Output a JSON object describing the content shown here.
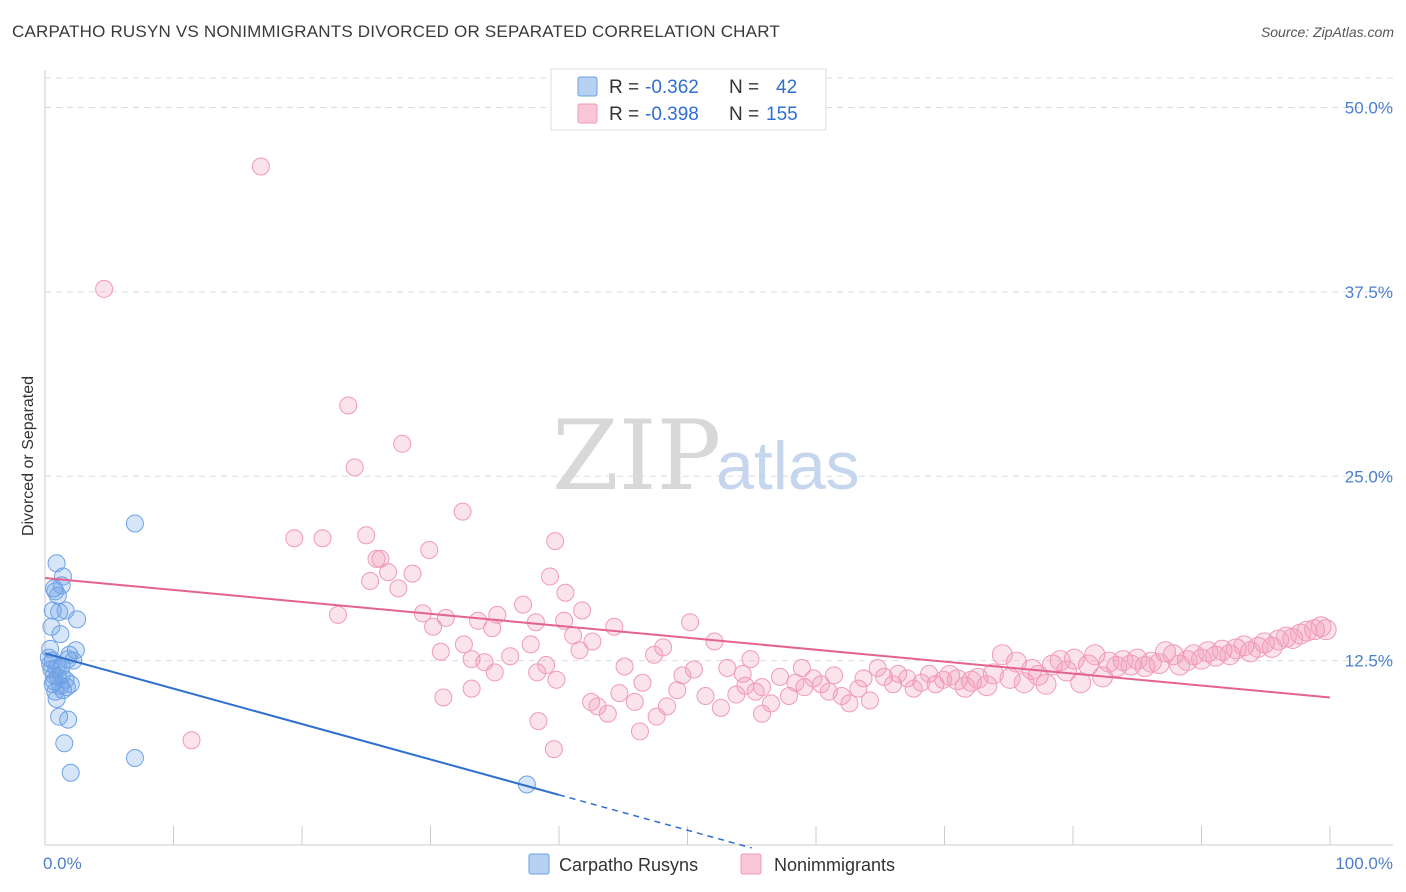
{
  "title": "CARPATHO RUSYN VS NONIMMIGRANTS DIVORCED OR SEPARATED CORRELATION CHART",
  "source": "Source: ZipAtlas.com",
  "watermark": {
    "zip": "ZIP",
    "atlas": "atlas"
  },
  "colors": {
    "blue": "#6ea2e6",
    "blue_line": "#2f6fd0",
    "pink": "#f19ab6",
    "pink_line": "#e4628e",
    "tick_text": "#4a7fcc",
    "grid": "#dddddd"
  },
  "legend": {
    "r_label": "R =",
    "n_label": "N =",
    "rows": [
      {
        "r": "-0.362",
        "n": "42"
      },
      {
        "r": "-0.398",
        "n": "155"
      }
    ]
  },
  "bottom_legend": [
    "Carpatho Rusyns",
    "Nonimmigrants"
  ],
  "chart_data": {
    "type": "scatter",
    "title": "CARPATHO RUSYN VS NONIMMIGRANTS DIVORCED OR SEPARATED CORRELATION CHART",
    "xlabel": "",
    "ylabel": "Divorced or Separated",
    "xlim": [
      0,
      100
    ],
    "ylim": [
      0,
      52
    ],
    "x_tick_labels": [
      "0.0%",
      "100.0%"
    ],
    "y_ticks": [
      12.5,
      25.0,
      37.5,
      50.0
    ],
    "y_tick_labels": [
      "12.5%",
      "25.0%",
      "37.5%",
      "50.0%"
    ],
    "grid": true,
    "legend_position": "top-center",
    "series": [
      {
        "name": "Carpatho Rusyns",
        "r": -0.362,
        "n": 42,
        "trend": {
          "x0": 0,
          "y0": 13.0,
          "x1": 40,
          "y1": 3.4,
          "dashed_to_x": 55
        },
        "points": [
          [
            0.3,
            12.7
          ],
          [
            0.4,
            12.3
          ],
          [
            0.5,
            11.9
          ],
          [
            0.6,
            12.5
          ],
          [
            0.7,
            11.5
          ],
          [
            0.4,
            13.3
          ],
          [
            0.5,
            14.8
          ],
          [
            0.6,
            15.9
          ],
          [
            0.7,
            17.4
          ],
          [
            0.8,
            17.2
          ],
          [
            0.9,
            19.1
          ],
          [
            1.0,
            16.9
          ],
          [
            1.1,
            15.8
          ],
          [
            1.2,
            14.3
          ],
          [
            1.3,
            17.6
          ],
          [
            1.4,
            18.2
          ],
          [
            0.6,
            10.9
          ],
          [
            0.7,
            11.1
          ],
          [
            0.8,
            10.4
          ],
          [
            0.9,
            9.9
          ],
          [
            1.0,
            11.4
          ],
          [
            1.2,
            10.8
          ],
          [
            1.3,
            12.1
          ],
          [
            1.4,
            10.5
          ],
          [
            1.6,
            11.2
          ],
          [
            1.7,
            10.7
          ],
          [
            1.8,
            12.6
          ],
          [
            1.9,
            12.9
          ],
          [
            2.0,
            10.9
          ],
          [
            2.2,
            12.5
          ],
          [
            1.1,
            8.7
          ],
          [
            1.5,
            6.9
          ],
          [
            1.8,
            8.5
          ],
          [
            2.0,
            4.9
          ],
          [
            2.4,
            13.2
          ],
          [
            2.5,
            15.3
          ],
          [
            1.6,
            15.9
          ],
          [
            0.9,
            12.0
          ],
          [
            1.3,
            11.5
          ],
          [
            7.0,
            21.8
          ],
          [
            7.0,
            5.9
          ],
          [
            37.5,
            4.1
          ]
        ]
      },
      {
        "name": "Nonimmigrants",
        "r": -0.398,
        "n": 155,
        "trend": {
          "x0": 0,
          "y0": 18.1,
          "x1": 100,
          "y1": 10.0
        },
        "points": [
          [
            16.8,
            46.0
          ],
          [
            4.6,
            37.7
          ],
          [
            23.6,
            29.8
          ],
          [
            27.8,
            27.2
          ],
          [
            24.1,
            25.6
          ],
          [
            32.5,
            22.6
          ],
          [
            19.4,
            20.8
          ],
          [
            21.6,
            20.8
          ],
          [
            25.0,
            21.0
          ],
          [
            29.9,
            20.0
          ],
          [
            39.7,
            20.6
          ],
          [
            25.8,
            19.4
          ],
          [
            26.1,
            19.4
          ],
          [
            26.7,
            18.5
          ],
          [
            28.6,
            18.4
          ],
          [
            25.3,
            17.9
          ],
          [
            27.5,
            17.4
          ],
          [
            39.3,
            18.2
          ],
          [
            22.8,
            15.6
          ],
          [
            29.4,
            15.7
          ],
          [
            30.2,
            14.8
          ],
          [
            31.2,
            15.4
          ],
          [
            33.7,
            15.2
          ],
          [
            35.2,
            15.6
          ],
          [
            34.8,
            14.7
          ],
          [
            37.2,
            16.3
          ],
          [
            38.2,
            15.1
          ],
          [
            41.8,
            15.9
          ],
          [
            40.4,
            15.2
          ],
          [
            41.1,
            14.2
          ],
          [
            50.2,
            15.1
          ],
          [
            36.2,
            12.8
          ],
          [
            39.0,
            12.2
          ],
          [
            33.2,
            12.6
          ],
          [
            34.2,
            12.4
          ],
          [
            35.0,
            11.7
          ],
          [
            38.3,
            11.7
          ],
          [
            41.6,
            13.2
          ],
          [
            42.6,
            13.8
          ],
          [
            48.1,
            13.4
          ],
          [
            45.1,
            12.1
          ],
          [
            46.5,
            11.0
          ],
          [
            47.4,
            12.9
          ],
          [
            39.6,
            6.5
          ],
          [
            31.0,
            10.0
          ],
          [
            32.6,
            13.6
          ],
          [
            33.2,
            10.6
          ],
          [
            11.4,
            7.1
          ],
          [
            38.4,
            8.4
          ],
          [
            39.8,
            11.2
          ],
          [
            42.5,
            9.7
          ],
          [
            43.0,
            9.4
          ],
          [
            43.8,
            8.9
          ],
          [
            44.7,
            10.3
          ],
          [
            45.9,
            9.7
          ],
          [
            46.3,
            7.7
          ],
          [
            47.6,
            8.7
          ],
          [
            48.4,
            9.4
          ],
          [
            49.2,
            10.5
          ],
          [
            49.6,
            11.5
          ],
          [
            51.4,
            10.1
          ],
          [
            52.6,
            9.3
          ],
          [
            53.1,
            12.0
          ],
          [
            53.8,
            10.2
          ],
          [
            54.3,
            11.6
          ],
          [
            55.3,
            10.4
          ],
          [
            55.8,
            10.7
          ],
          [
            56.5,
            9.6
          ],
          [
            57.2,
            11.4
          ],
          [
            57.9,
            10.1
          ],
          [
            58.4,
            11.0
          ],
          [
            59.1,
            10.7
          ],
          [
            59.8,
            11.3
          ],
          [
            60.4,
            10.9
          ],
          [
            61.0,
            10.4
          ],
          [
            61.4,
            11.5
          ],
          [
            62.0,
            10.1
          ],
          [
            62.6,
            9.6
          ],
          [
            63.3,
            10.6
          ],
          [
            63.7,
            11.3
          ],
          [
            64.2,
            9.8
          ],
          [
            64.8,
            12.0
          ],
          [
            65.3,
            11.4
          ],
          [
            66.0,
            10.9
          ],
          [
            66.4,
            11.6
          ],
          [
            67.1,
            11.3
          ],
          [
            67.6,
            10.6
          ],
          [
            68.2,
            11.0
          ],
          [
            68.8,
            11.6
          ],
          [
            69.3,
            10.9
          ],
          [
            69.9,
            11.2
          ],
          [
            70.4,
            11.5
          ],
          [
            71.0,
            11.2
          ],
          [
            71.6,
            10.7
          ],
          [
            72.1,
            11.1
          ],
          [
            72.6,
            11.3
          ],
          [
            73.3,
            10.8
          ],
          [
            73.8,
            11.6
          ],
          [
            74.5,
            12.9
          ],
          [
            75.1,
            11.3
          ],
          [
            75.6,
            12.4
          ],
          [
            76.2,
            11.0
          ],
          [
            76.8,
            11.9
          ],
          [
            77.3,
            11.5
          ],
          [
            77.9,
            10.9
          ],
          [
            78.4,
            12.2
          ],
          [
            79.0,
            12.5
          ],
          [
            79.5,
            11.8
          ],
          [
            80.1,
            12.6
          ],
          [
            80.6,
            11.0
          ],
          [
            81.2,
            12.2
          ],
          [
            81.7,
            12.9
          ],
          [
            82.3,
            11.4
          ],
          [
            82.8,
            12.4
          ],
          [
            83.4,
            12.1
          ],
          [
            83.9,
            12.5
          ],
          [
            84.5,
            12.2
          ],
          [
            85.0,
            12.6
          ],
          [
            85.6,
            12.1
          ],
          [
            86.1,
            12.4
          ],
          [
            86.7,
            12.3
          ],
          [
            87.2,
            13.1
          ],
          [
            87.8,
            12.9
          ],
          [
            88.3,
            12.2
          ],
          [
            88.9,
            12.5
          ],
          [
            89.4,
            12.9
          ],
          [
            90.0,
            12.6
          ],
          [
            90.5,
            13.1
          ],
          [
            91.1,
            12.8
          ],
          [
            91.6,
            13.2
          ],
          [
            92.2,
            12.9
          ],
          [
            92.7,
            13.3
          ],
          [
            93.3,
            13.5
          ],
          [
            93.8,
            13.1
          ],
          [
            94.4,
            13.4
          ],
          [
            94.9,
            13.7
          ],
          [
            95.5,
            13.4
          ],
          [
            96.0,
            13.9
          ],
          [
            96.6,
            14.1
          ],
          [
            97.1,
            14.0
          ],
          [
            97.7,
            14.3
          ],
          [
            98.2,
            14.5
          ],
          [
            98.8,
            14.6
          ],
          [
            99.3,
            14.8
          ],
          [
            99.7,
            14.6
          ],
          [
            52.1,
            13.8
          ],
          [
            54.9,
            12.6
          ],
          [
            58.9,
            12.0
          ],
          [
            55.8,
            8.9
          ],
          [
            40.5,
            17.1
          ],
          [
            44.3,
            14.8
          ],
          [
            50.5,
            11.9
          ],
          [
            54.5,
            10.8
          ],
          [
            30.8,
            13.1
          ],
          [
            37.8,
            13.6
          ]
        ]
      }
    ]
  }
}
